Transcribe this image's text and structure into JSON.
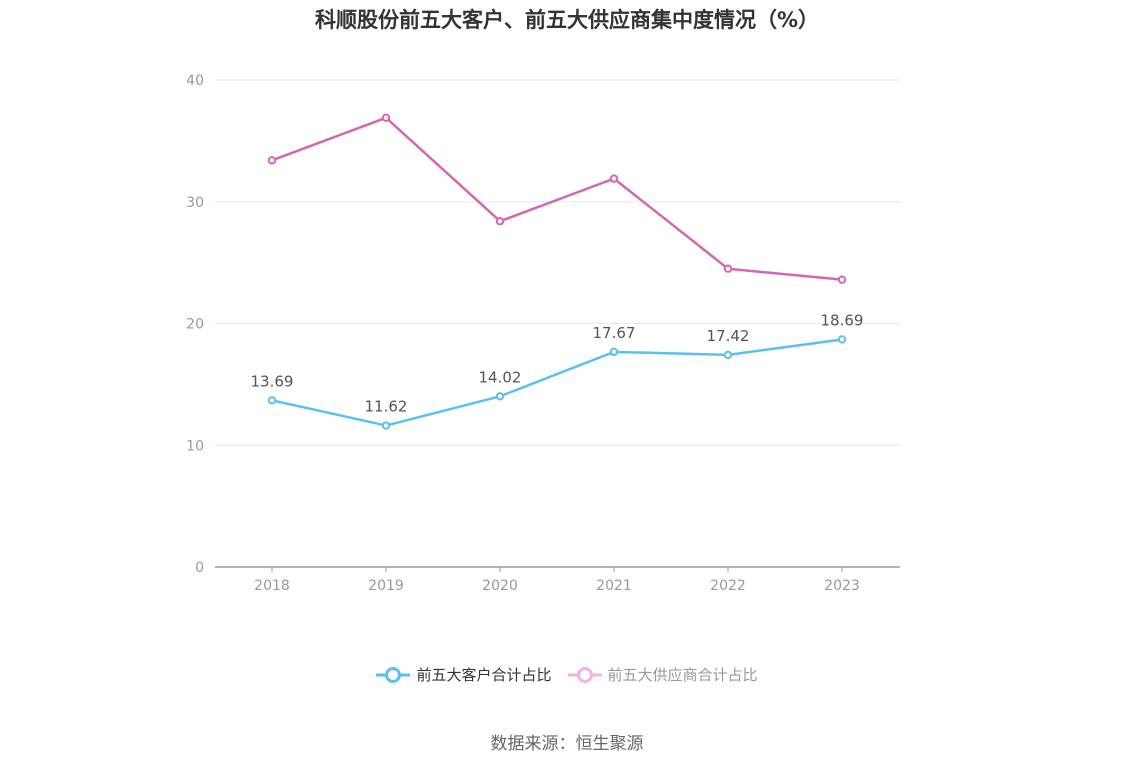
{
  "title": "科顺股份前五大客户、前五大供应商集中度情况（%）",
  "source": "数据来源：恒生聚源",
  "colors": {
    "customers": "#5bc0f0",
    "suppliers": "#d467b3",
    "grid": "#e6e8f0",
    "axis": "#999999"
  },
  "legend": {
    "customers": "前五大客户合计占比",
    "suppliers": "前五大供应商合计占比"
  },
  "chart_data": {
    "type": "line",
    "title": "科顺股份前五大客户、前五大供应商集中度情况（%）",
    "xlabel": "",
    "ylabel": "",
    "categories": [
      "2018",
      "2019",
      "2020",
      "2021",
      "2022",
      "2023"
    ],
    "ylim": [
      0,
      40
    ],
    "yticks": [
      0,
      10,
      20,
      30,
      40
    ],
    "grid": true,
    "legend_position": "bottom",
    "series": [
      {
        "name": "前五大客户合计占比",
        "values": [
          13.69,
          11.62,
          14.02,
          17.67,
          17.42,
          18.69
        ],
        "labels": [
          "13.69",
          "11.62",
          "14.02",
          "17.67",
          "17.42",
          "18.69"
        ],
        "show_labels": true
      },
      {
        "name": "前五大供应商合计占比",
        "values": [
          33.4,
          36.9,
          28.4,
          31.9,
          24.5,
          23.6
        ],
        "show_labels": false
      }
    ]
  }
}
